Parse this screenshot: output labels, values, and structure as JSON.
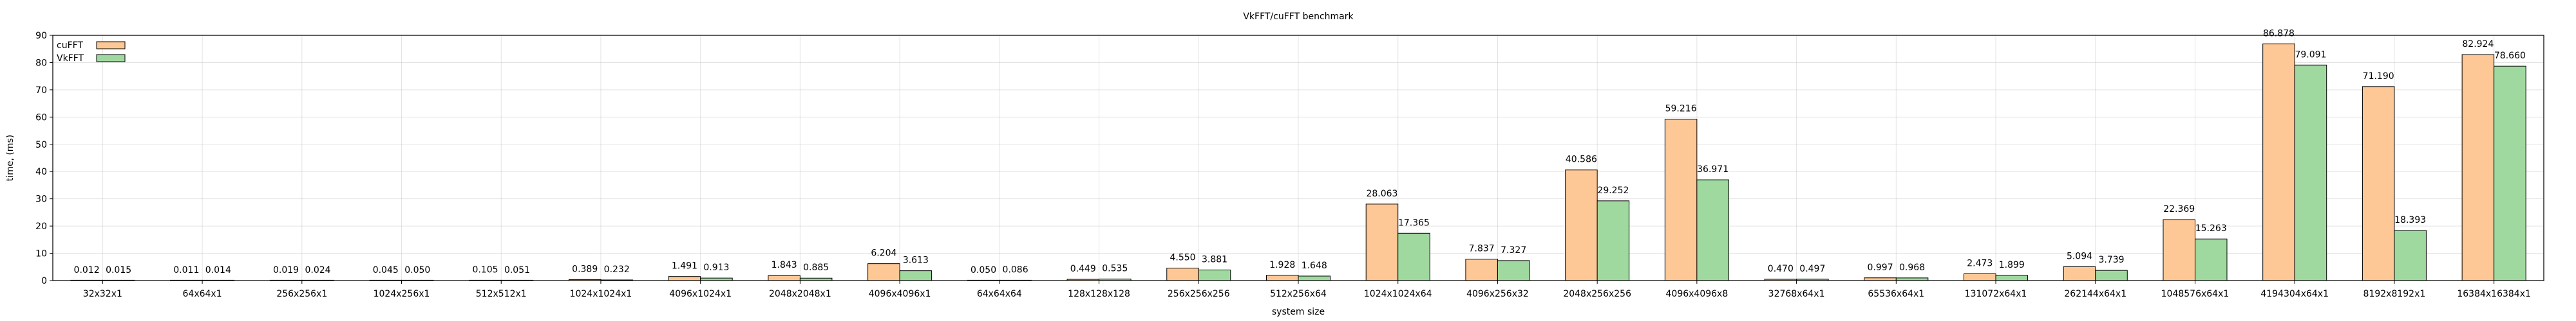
{
  "chart_data": {
    "type": "bar",
    "title": "VkFFT/cuFFT benchmark",
    "xlabel": "system size",
    "ylabel": "time, (ms)",
    "ylim": [
      0,
      90
    ],
    "yticks": [
      0,
      10,
      20,
      30,
      40,
      50,
      60,
      70,
      80,
      90
    ],
    "grid": true,
    "legend_position": "top-left",
    "categories": [
      "32x32x1",
      "64x64x1",
      "256x256x1",
      "1024x256x1",
      "512x512x1",
      "1024x1024x1",
      "4096x1024x1",
      "2048x2048x1",
      "4096x4096x1",
      "64x64x64",
      "128x128x128",
      "256x256x256",
      "512x256x64",
      "1024x1024x64",
      "4096x256x32",
      "2048x256x256",
      "4096x4096x8",
      "32768x64x1",
      "65536x64x1",
      "131072x64x1",
      "262144x64x1",
      "1048576x64x1",
      "4194304x64x1",
      "8192x8192x1",
      "16384x16384x1"
    ],
    "series": [
      {
        "name": "cuFFT",
        "color": "#fdc895",
        "values": [
          0.012,
          0.011,
          0.019,
          0.045,
          0.105,
          0.389,
          1.491,
          1.843,
          6.204,
          0.05,
          0.449,
          4.55,
          1.928,
          28.063,
          7.837,
          40.586,
          59.216,
          0.47,
          0.997,
          2.473,
          5.094,
          22.369,
          86.878,
          71.19,
          82.924
        ],
        "labels": [
          "0.012",
          "0.011",
          "0.019",
          "0.045",
          "0.105",
          "0.389",
          "1.491",
          "1.843",
          "6.204",
          "0.050",
          "0.449",
          "4.550",
          "1.928",
          "28.063",
          "7.837",
          "40.586",
          "59.216",
          "0.470",
          "0.997",
          "2.473",
          "5.094",
          "22.369",
          "86.878",
          "71.190",
          "82.924"
        ]
      },
      {
        "name": "VkFFT",
        "color": "#9fd99f",
        "values": [
          0.015,
          0.014,
          0.024,
          0.05,
          0.051,
          0.232,
          0.913,
          0.885,
          3.613,
          0.086,
          0.535,
          3.881,
          1.648,
          17.365,
          7.327,
          29.252,
          36.971,
          0.497,
          0.968,
          1.899,
          3.739,
          15.263,
          79.091,
          18.393,
          78.66
        ],
        "labels": [
          "0.015",
          "0.014",
          "0.024",
          "0.050",
          "0.051",
          "0.232",
          "0.913",
          "0.885",
          "3.613",
          "0.086",
          "0.535",
          "3.881",
          "1.648",
          "17.365",
          "7.327",
          "29.252",
          "36.971",
          "0.497",
          "0.968",
          "1.899",
          "3.739",
          "15.263",
          "79.091",
          "18.393",
          "78.660"
        ]
      }
    ]
  }
}
